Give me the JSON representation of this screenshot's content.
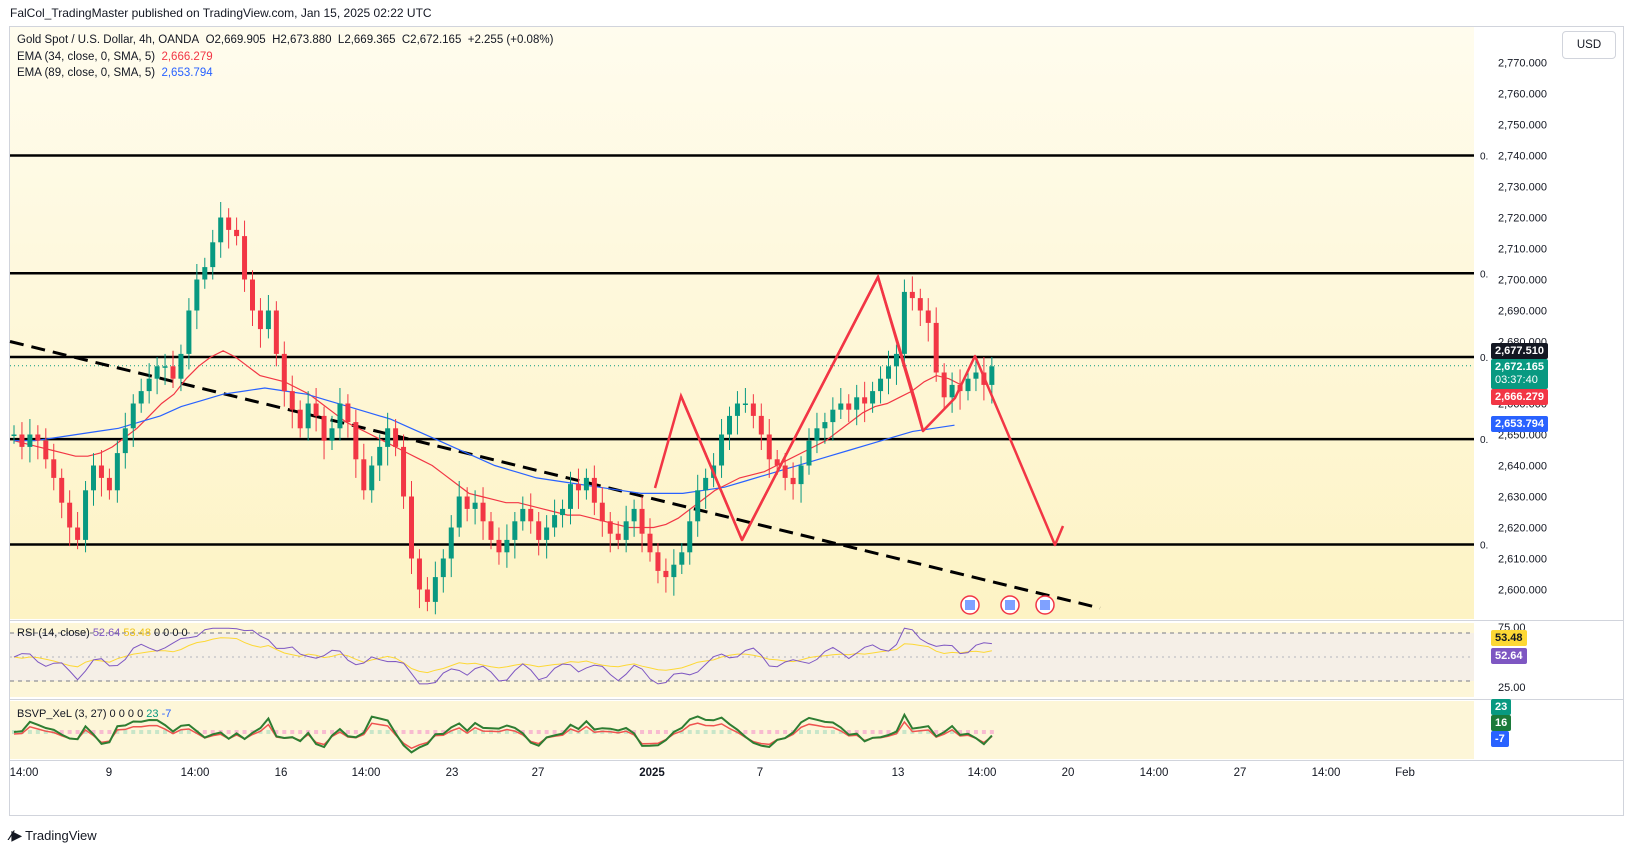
{
  "header": {
    "published": "FalCol_TradingMaster published on TradingView.com, Jan 15, 2025 02:22 UTC"
  },
  "legend": {
    "symbol": "Gold Spot / U.S. Dollar, 4h, OANDA",
    "open": "O2,669.905",
    "high": "H2,673.880",
    "low": "L2,669.365",
    "close": "C2,672.165",
    "change": "+2.255 (+0.08%)",
    "ema34_label": "EMA (34, close, 0, SMA, 5)",
    "ema34_value": "2,666.279",
    "ema89_label": "EMA (89, close, 0, SMA, 5)",
    "ema89_value": "2,653.794"
  },
  "price_scale": {
    "currency": "USD",
    "ticks": [
      "2,770.000",
      "2,760.000",
      "2,750.000",
      "2,740.000",
      "2,730.000",
      "2,720.000",
      "2,710.000",
      "2,700.000",
      "2,690.000",
      "2,680.000",
      "2,660.000",
      "2,650.000",
      "2,640.000",
      "2,630.000",
      "2,620.000",
      "2,610.000",
      "2,600.000"
    ],
    "level_mark": "0."
  },
  "tags": {
    "level": "2,677.510",
    "last_price": "2,672.165",
    "countdown": "03:37:40",
    "ema34": "2,666.279",
    "ema89": "2,653.794"
  },
  "rsi": {
    "label": "RSI (14, close)",
    "value": "52.64",
    "ma_value": "53.48",
    "zeros": "0 0 0 0",
    "upper": "75.00",
    "lower": "25.00"
  },
  "bsvp": {
    "label": "BSVP_XeL (3, 27)",
    "zeros": "0 0 0 0",
    "v1": "23",
    "v2": "16",
    "v3": "-7"
  },
  "time_axis": [
    {
      "label": "14:00",
      "bold": false
    },
    {
      "label": "9",
      "bold": false
    },
    {
      "label": "14:00",
      "bold": false
    },
    {
      "label": "16",
      "bold": false
    },
    {
      "label": "14:00",
      "bold": false
    },
    {
      "label": "23",
      "bold": false
    },
    {
      "label": "27",
      "bold": false
    },
    {
      "label": "2025",
      "bold": true
    },
    {
      "label": "7",
      "bold": false
    },
    {
      "label": "13",
      "bold": false
    },
    {
      "label": "14:00",
      "bold": false
    },
    {
      "label": "20",
      "bold": false
    },
    {
      "label": "14:00",
      "bold": false
    },
    {
      "label": "27",
      "bold": false
    },
    {
      "label": "14:00",
      "bold": false
    },
    {
      "label": "Feb",
      "bold": false
    }
  ],
  "footer": {
    "brand": "TradingView"
  },
  "colors": {
    "up": "#089981",
    "down": "#f23645",
    "ema34": "#f23645",
    "ema89": "#2962ff",
    "rsi": "#7e57c2",
    "rsi_ma": "#fdd835",
    "pattern": "#f23645"
  },
  "chart_data": {
    "type": "candlestick",
    "title": "Gold Spot / U.S. Dollar, 4h, OANDA",
    "ylim": [
      2595,
      2775
    ],
    "horizontal_levels": [
      2740,
      2702,
      2675,
      2648.5,
      2614.5
    ],
    "trendline": [
      [
        0,
        2680
      ],
      [
        117,
        2594
      ]
    ],
    "candle_closes": [
      2650,
      2646,
      2650,
      2648,
      2642,
      2636,
      2628,
      2620,
      2616,
      2632,
      2640,
      2636,
      2632,
      2644,
      2652,
      2660,
      2664,
      2668,
      2672,
      2672,
      2668,
      2676,
      2690,
      2700,
      2704,
      2712,
      2720,
      2716,
      2714,
      2700,
      2690,
      2684,
      2690,
      2676,
      2664,
      2658,
      2652,
      2660,
      2656,
      2648,
      2652,
      2660,
      2654,
      2642,
      2632,
      2640,
      2646,
      2652,
      2646,
      2630,
      2610,
      2600,
      2596,
      2604,
      2610,
      2620,
      2630,
      2626,
      2628,
      2622,
      2616,
      2612,
      2616,
      2622,
      2626,
      2622,
      2616,
      2620,
      2624,
      2626,
      2634,
      2632,
      2636,
      2628,
      2622,
      2618,
      2616,
      2622,
      2626,
      2618,
      2612,
      2606,
      2604,
      2608,
      2612,
      2622,
      2632,
      2636,
      2640,
      2650,
      2656,
      2660,
      2660,
      2656,
      2650,
      2642,
      2640,
      2636,
      2634,
      2640,
      2648,
      2652,
      2654,
      2658,
      2660,
      2658,
      2662,
      2660,
      2664,
      2668,
      2672,
      2676,
      2696,
      2694,
      2690,
      2686,
      2670,
      2662,
      2666,
      2664,
      2668,
      2670,
      2666,
      2672
    ],
    "ema34": [
      2648,
      2647,
      2646,
      2645,
      2644,
      2643,
      2643,
      2644,
      2646,
      2649,
      2652,
      2656,
      2660,
      2663,
      2668,
      2672,
      2675,
      2677,
      2675,
      2672,
      2669,
      2668,
      2667,
      2665,
      2663,
      2660,
      2657,
      2654,
      2652,
      2650,
      2648,
      2646,
      2644,
      2642,
      2640,
      2637,
      2634,
      2631,
      2630,
      2629,
      2628,
      2628,
      2627,
      2626,
      2625,
      2624,
      2624,
      2623,
      2622,
      2621,
      2620,
      2620,
      2620,
      2621,
      2623,
      2626,
      2629,
      2632,
      2634,
      2636,
      2637,
      2638,
      2640,
      2642,
      2644,
      2646,
      2648,
      2651,
      2654,
      2657,
      2659,
      2660,
      2662,
      2664,
      2667,
      2669,
      2668,
      2666
    ],
    "ema89": [
      2648,
      2648,
      2649,
      2650,
      2651,
      2652,
      2654,
      2656,
      2659,
      2661,
      2663,
      2664,
      2665,
      2664,
      2663,
      2661,
      2659,
      2657,
      2655,
      2652,
      2649,
      2646,
      2643,
      2640,
      2638,
      2636,
      2635,
      2634,
      2633,
      2632,
      2631,
      2631,
      2631,
      2632,
      2633,
      2635,
      2637,
      2639,
      2641,
      2643,
      2645,
      2647,
      2649,
      2651,
      2652,
      2653
    ],
    "pattern_polyline": [
      [
        2644,
        2650
      ],
      [
        2654,
        2664
      ],
      [
        2660,
        2645
      ],
      [
        2664,
        2615
      ],
      [
        2672,
        2660
      ],
      [
        2682,
        2701
      ],
      [
        2688,
        2665
      ],
      [
        2692,
        2650
      ],
      [
        2698,
        2661
      ],
      [
        2701,
        2675
      ],
      [
        2710,
        2648
      ],
      [
        2718,
        2614.5
      ],
      [
        2720,
        2619
      ]
    ],
    "rsi": {
      "upper": 75,
      "lower": 25,
      "value": 52.64,
      "ma": 53.48
    },
    "bsvp": {
      "values": [
        23,
        16,
        -7
      ]
    }
  }
}
